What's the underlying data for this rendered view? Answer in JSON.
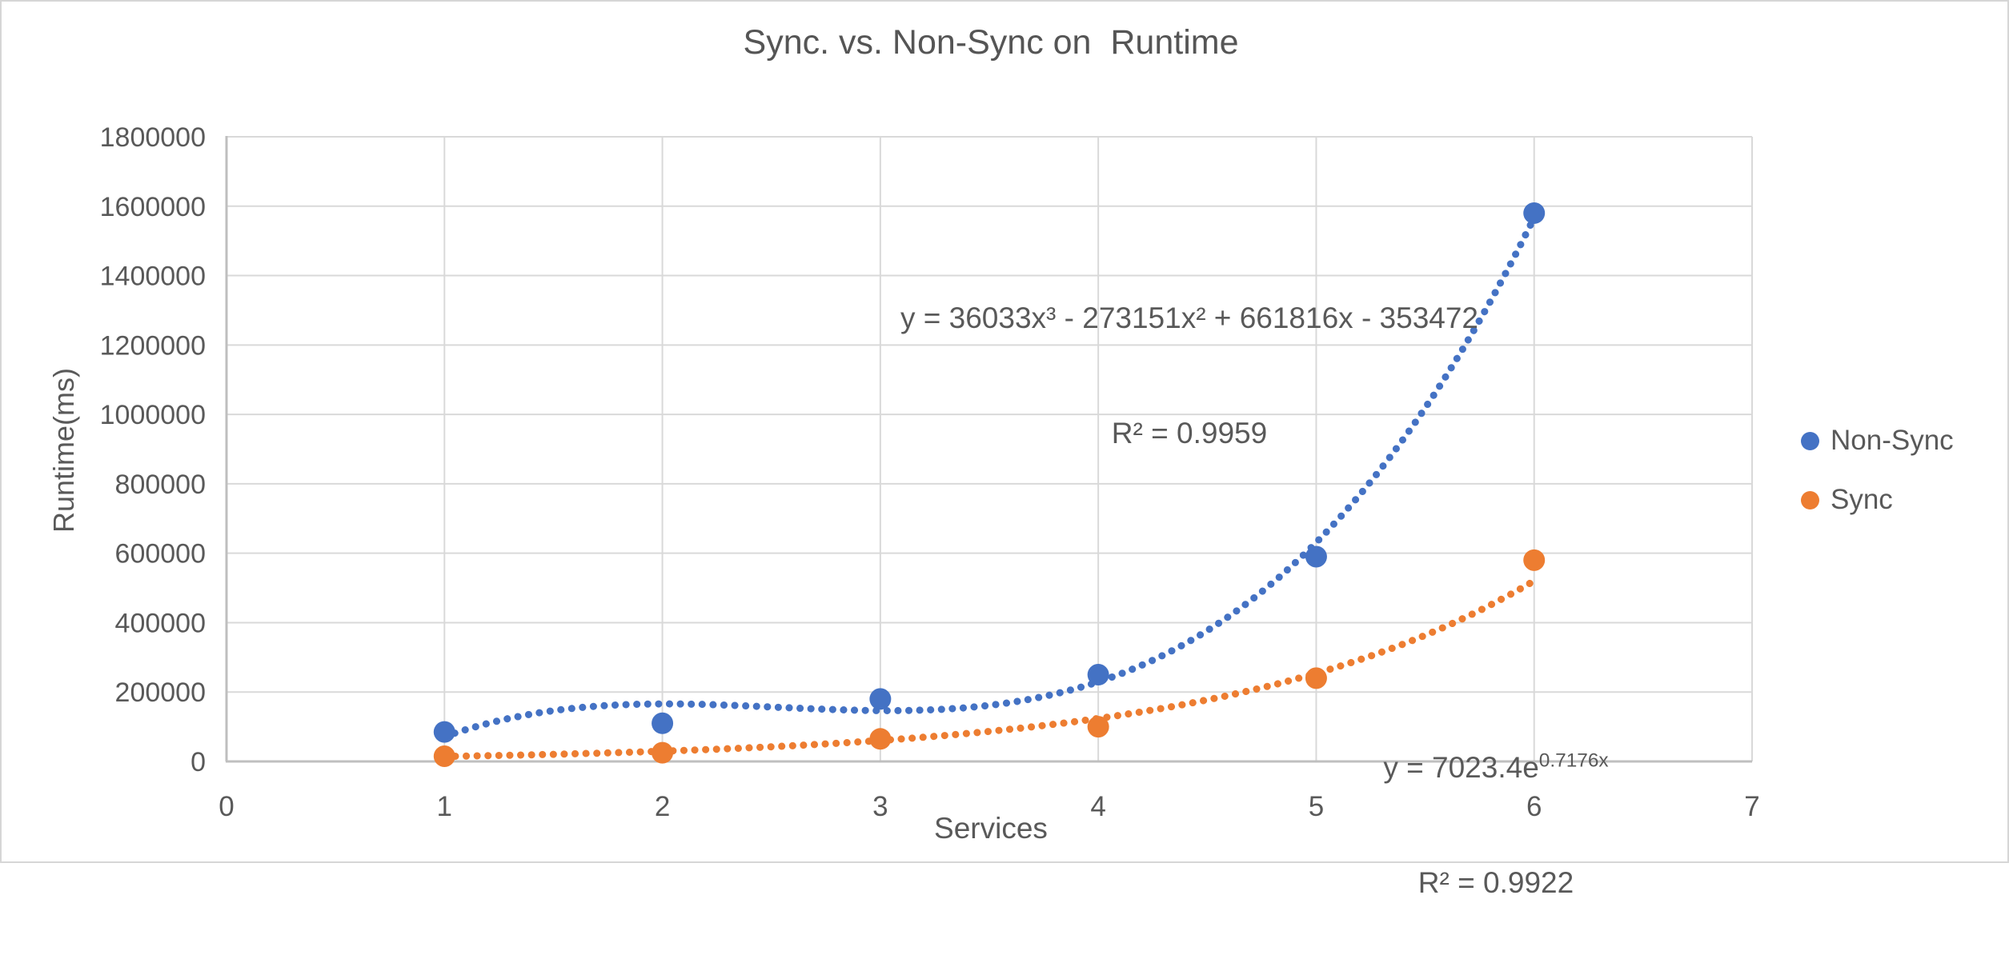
{
  "chart_data": {
    "type": "scatter",
    "title": "Sync. vs. Non-Sync on  Runtime",
    "xlabel": "Services",
    "ylabel": "Runtime(ms)",
    "xlim": [
      0,
      7
    ],
    "ylim": [
      0,
      1800000
    ],
    "x_ticks": [
      0,
      1,
      2,
      3,
      4,
      5,
      6,
      7
    ],
    "y_ticks": [
      0,
      200000,
      400000,
      600000,
      800000,
      1000000,
      1200000,
      1400000,
      1600000,
      1800000
    ],
    "grid": true,
    "legend_position": "right",
    "x": [
      1,
      2,
      3,
      4,
      5,
      6
    ],
    "series": [
      {
        "name": "Non-Sync",
        "color": "#4472C4",
        "values": [
          85000,
          110000,
          180000,
          250000,
          590000,
          1580000
        ],
        "trendline": {
          "kind": "cubic",
          "coeffs": [
            36033,
            -273151,
            661816,
            -353472
          ],
          "range": [
            1,
            6
          ],
          "equation": "y = 36033x³ - 273151x² + 661816x - 353472",
          "r2_label": "R² = 0.9959"
        }
      },
      {
        "name": "Sync",
        "color": "#ED7D31",
        "values": [
          15000,
          25000,
          65000,
          100000,
          240000,
          580000
        ],
        "trendline": {
          "kind": "exponential",
          "a": 7023.4,
          "b": 0.7176,
          "range": [
            1,
            6
          ],
          "equation_base": "y = 7023.4e",
          "equation_sup": "0.7176x",
          "r2_label": "R² = 0.9922"
        }
      }
    ],
    "colors": {
      "gridline": "#D9D9D9",
      "axis_line": "#BFBFBF",
      "text": "#595959",
      "title": "#555555"
    }
  }
}
